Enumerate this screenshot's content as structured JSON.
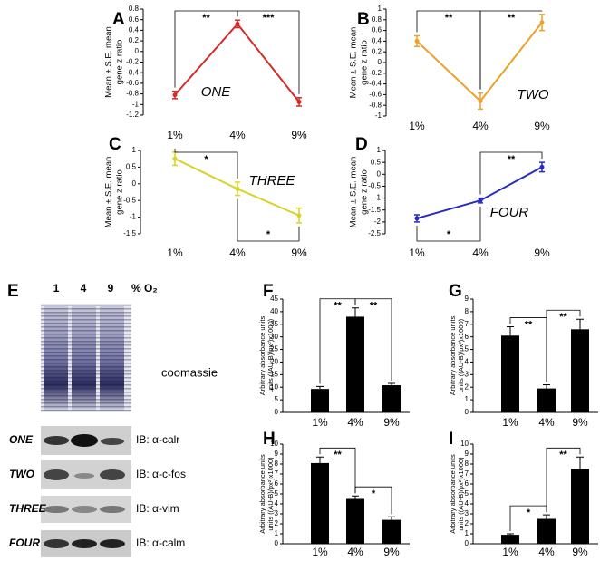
{
  "chart_data": [
    {
      "type": "line",
      "panel": "A",
      "label": "ONE",
      "ylabel": [
        "Mean ± S.E. mean",
        "gene z ratio"
      ],
      "categories": [
        "1%",
        "4%",
        "9%"
      ],
      "values": [
        -0.82,
        0.52,
        -0.95
      ],
      "errors": [
        0.07,
        0.07,
        0.08
      ],
      "color": "#d42a2a",
      "ylim": [
        -1.2,
        0.8
      ],
      "yticks": [
        0.8,
        0.6,
        0.4,
        0.2,
        0,
        -0.2,
        -0.4,
        -0.6,
        -0.8,
        -1,
        -1.2
      ],
      "annotations": [
        "**",
        "***"
      ]
    },
    {
      "type": "line",
      "panel": "B",
      "label": "TWO",
      "ylabel": [
        "Mean ± S.E. mean",
        "gene z ratio"
      ],
      "categories": [
        "1%",
        "4%",
        "9%"
      ],
      "values": [
        0.4,
        -0.72,
        0.75
      ],
      "errors": [
        0.1,
        0.15,
        0.15
      ],
      "color": "#eba12a",
      "ylim": [
        -1,
        1
      ],
      "yticks": [
        1,
        0.8,
        0.6,
        0.4,
        0.2,
        0,
        -0.2,
        -0.4,
        -0.6,
        -0.8,
        -1
      ],
      "annotations": [
        "**",
        "**"
      ]
    },
    {
      "type": "line",
      "panel": "C",
      "label": "THREE",
      "ylabel": [
        "Mean ± S.E. mean",
        "gene z ratio"
      ],
      "categories": [
        "1%",
        "4%",
        "9%"
      ],
      "values": [
        0.75,
        -0.15,
        -0.95
      ],
      "errors": [
        0.2,
        0.2,
        0.22
      ],
      "color": "#d8d22a",
      "ylim": [
        -1.5,
        1
      ],
      "yticks": [
        1,
        0.5,
        0,
        -0.5,
        -1,
        -1.5
      ],
      "annotations": [
        "*",
        "*"
      ]
    },
    {
      "type": "line",
      "panel": "D",
      "label": "FOUR",
      "ylabel": [
        "Mean ± S.E. mean",
        "gene z ratio"
      ],
      "categories": [
        "1%",
        "4%",
        "9%"
      ],
      "values": [
        -1.85,
        -1.1,
        0.3
      ],
      "errors": [
        0.15,
        0.1,
        0.2
      ],
      "color": "#2a2ac0",
      "ylim": [
        -2.5,
        1
      ],
      "yticks": [
        1,
        0.5,
        0,
        -0.5,
        -1,
        -1.5,
        -2,
        -2.5
      ],
      "annotations": [
        "*",
        "**"
      ]
    },
    {
      "type": "bar",
      "panel": "F",
      "ylabel": [
        "Arbitrary absorbance units",
        "units ((AU-B)/px²)x1000)"
      ],
      "categories": [
        "1%",
        "4%",
        "9%"
      ],
      "values": [
        9.3,
        38,
        10.8
      ],
      "errors": [
        1,
        3.5,
        0.7
      ],
      "color": "#000000",
      "ylim": [
        0,
        45
      ],
      "yticks": [
        0,
        5,
        10,
        15,
        20,
        25,
        30,
        35,
        40,
        45
      ],
      "annotations": [
        "**",
        "**"
      ]
    },
    {
      "type": "bar",
      "panel": "G",
      "ylabel": [
        "Arbitrary absorbance units",
        "units ((AU-B)/px²)x1000)"
      ],
      "categories": [
        "1%",
        "4%",
        "9%"
      ],
      "values": [
        6.1,
        1.9,
        6.6
      ],
      "errors": [
        0.7,
        0.3,
        0.8
      ],
      "color": "#000000",
      "ylim": [
        0,
        9
      ],
      "yticks": [
        0,
        1,
        2,
        3,
        4,
        5,
        6,
        7,
        8,
        9
      ],
      "annotations": [
        "**",
        "**"
      ]
    },
    {
      "type": "bar",
      "panel": "H",
      "ylabel": [
        "Arbitrary absorbance units",
        "units ((AU-B)/px²)x1000)"
      ],
      "categories": [
        "1%",
        "4%",
        "9%"
      ],
      "values": [
        8.1,
        4.5,
        2.4
      ],
      "errors": [
        0.6,
        0.3,
        0.3
      ],
      "color": "#000000",
      "ylim": [
        0,
        10
      ],
      "yticks": [
        0,
        1,
        2,
        3,
        4,
        5,
        6,
        7,
        8,
        9,
        10
      ],
      "annotations": [
        "**",
        "*"
      ]
    },
    {
      "type": "bar",
      "panel": "I",
      "ylabel": [
        "Arbitrary absorbance units",
        "units ((AU-B)/px²)x1000)"
      ],
      "categories": [
        "1%",
        "4%",
        "9%"
      ],
      "values": [
        0.9,
        2.5,
        7.5
      ],
      "errors": [
        0.1,
        0.4,
        1.2
      ],
      "color": "#000000",
      "ylim": [
        0,
        10
      ],
      "yticks": [
        0,
        1,
        2,
        3,
        4,
        5,
        6,
        7,
        8,
        9,
        10
      ],
      "annotations": [
        "*",
        "**"
      ]
    }
  ],
  "blot": {
    "panel": "E",
    "lanes": [
      "1",
      "4",
      "9"
    ],
    "unit": "% O₂",
    "stain": "coomassie",
    "rows": [
      {
        "gene": "ONE",
        "antibody": "IB: α-calr"
      },
      {
        "gene": "TWO",
        "antibody": "IB: α-c-fos"
      },
      {
        "gene": "THREE",
        "antibody": "IB: α-vim"
      },
      {
        "gene": "FOUR",
        "antibody": "IB: α-calm"
      }
    ]
  }
}
